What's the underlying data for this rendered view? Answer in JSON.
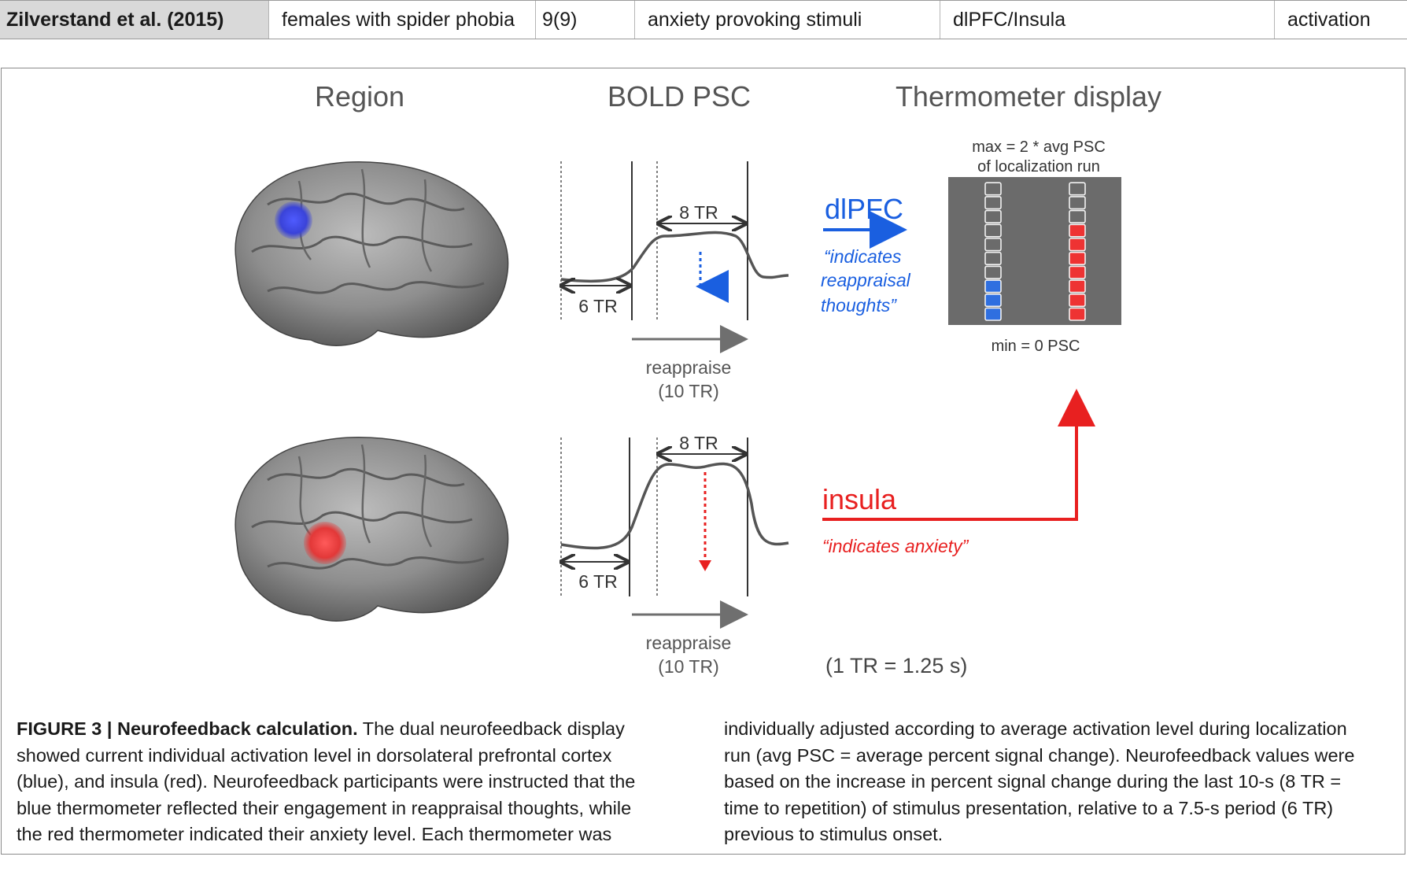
{
  "table_row": {
    "study": "Zilverstand et al. (2015)",
    "population": "females with spider phobia",
    "n": "9(9)",
    "stimuli": "anxiety provoking stimuli",
    "region": "dlPFC/Insula",
    "direction": "activation"
  },
  "figure": {
    "headers": {
      "region": "Region",
      "bold": "BOLD PSC",
      "thermo": "Thermometer display"
    },
    "top": {
      "tr8": "8 TR",
      "tr6": "6 TR",
      "reappraise": "reappraise",
      "reappraise_dur": "(10 TR)",
      "roi_label": "dlPFC",
      "roi_desc_1": "“indicates",
      "roi_desc_2": "reappraisal",
      "roi_desc_3": "thoughts”"
    },
    "bottom": {
      "tr8": "8 TR",
      "tr6": "6 TR",
      "reappraise": "reappraise",
      "reappraise_dur": "(10 TR)",
      "roi_label": "insula",
      "roi_desc": "“indicates anxiety”"
    },
    "thermometer": {
      "max_line1": "max = 2 * avg PSC",
      "max_line2": "of localization run",
      "min_label": "min = 0 PSC",
      "blue_filled_of_10": 3,
      "red_filled_of_10": 7,
      "blue_color": "#2f6fe0",
      "red_color": "#ee3333"
    },
    "tr_note": "(1 TR = 1.25 s)"
  },
  "caption": {
    "label": "FIGURE 3 | Neurofeedback calculation.",
    "left_text": " The dual neurofeedback display showed current individual activation level in dorsolateral prefrontal cortex (blue), and insula (red). Neurofeedback participants were instructed that the blue thermometer reflected their engagement in reappraisal thoughts, while the red thermometer indicated their anxiety level. Each thermometer was",
    "right_text": "individually adjusted according to average activation level during localization run (avg PSC = average percent signal change). Neurofeedback values were based on the increase in percent signal change during the last 10-s (8 TR = time to repetition) of stimulus presentation, relative to a 7.5-s period (6 TR) previous to stimulus onset."
  }
}
